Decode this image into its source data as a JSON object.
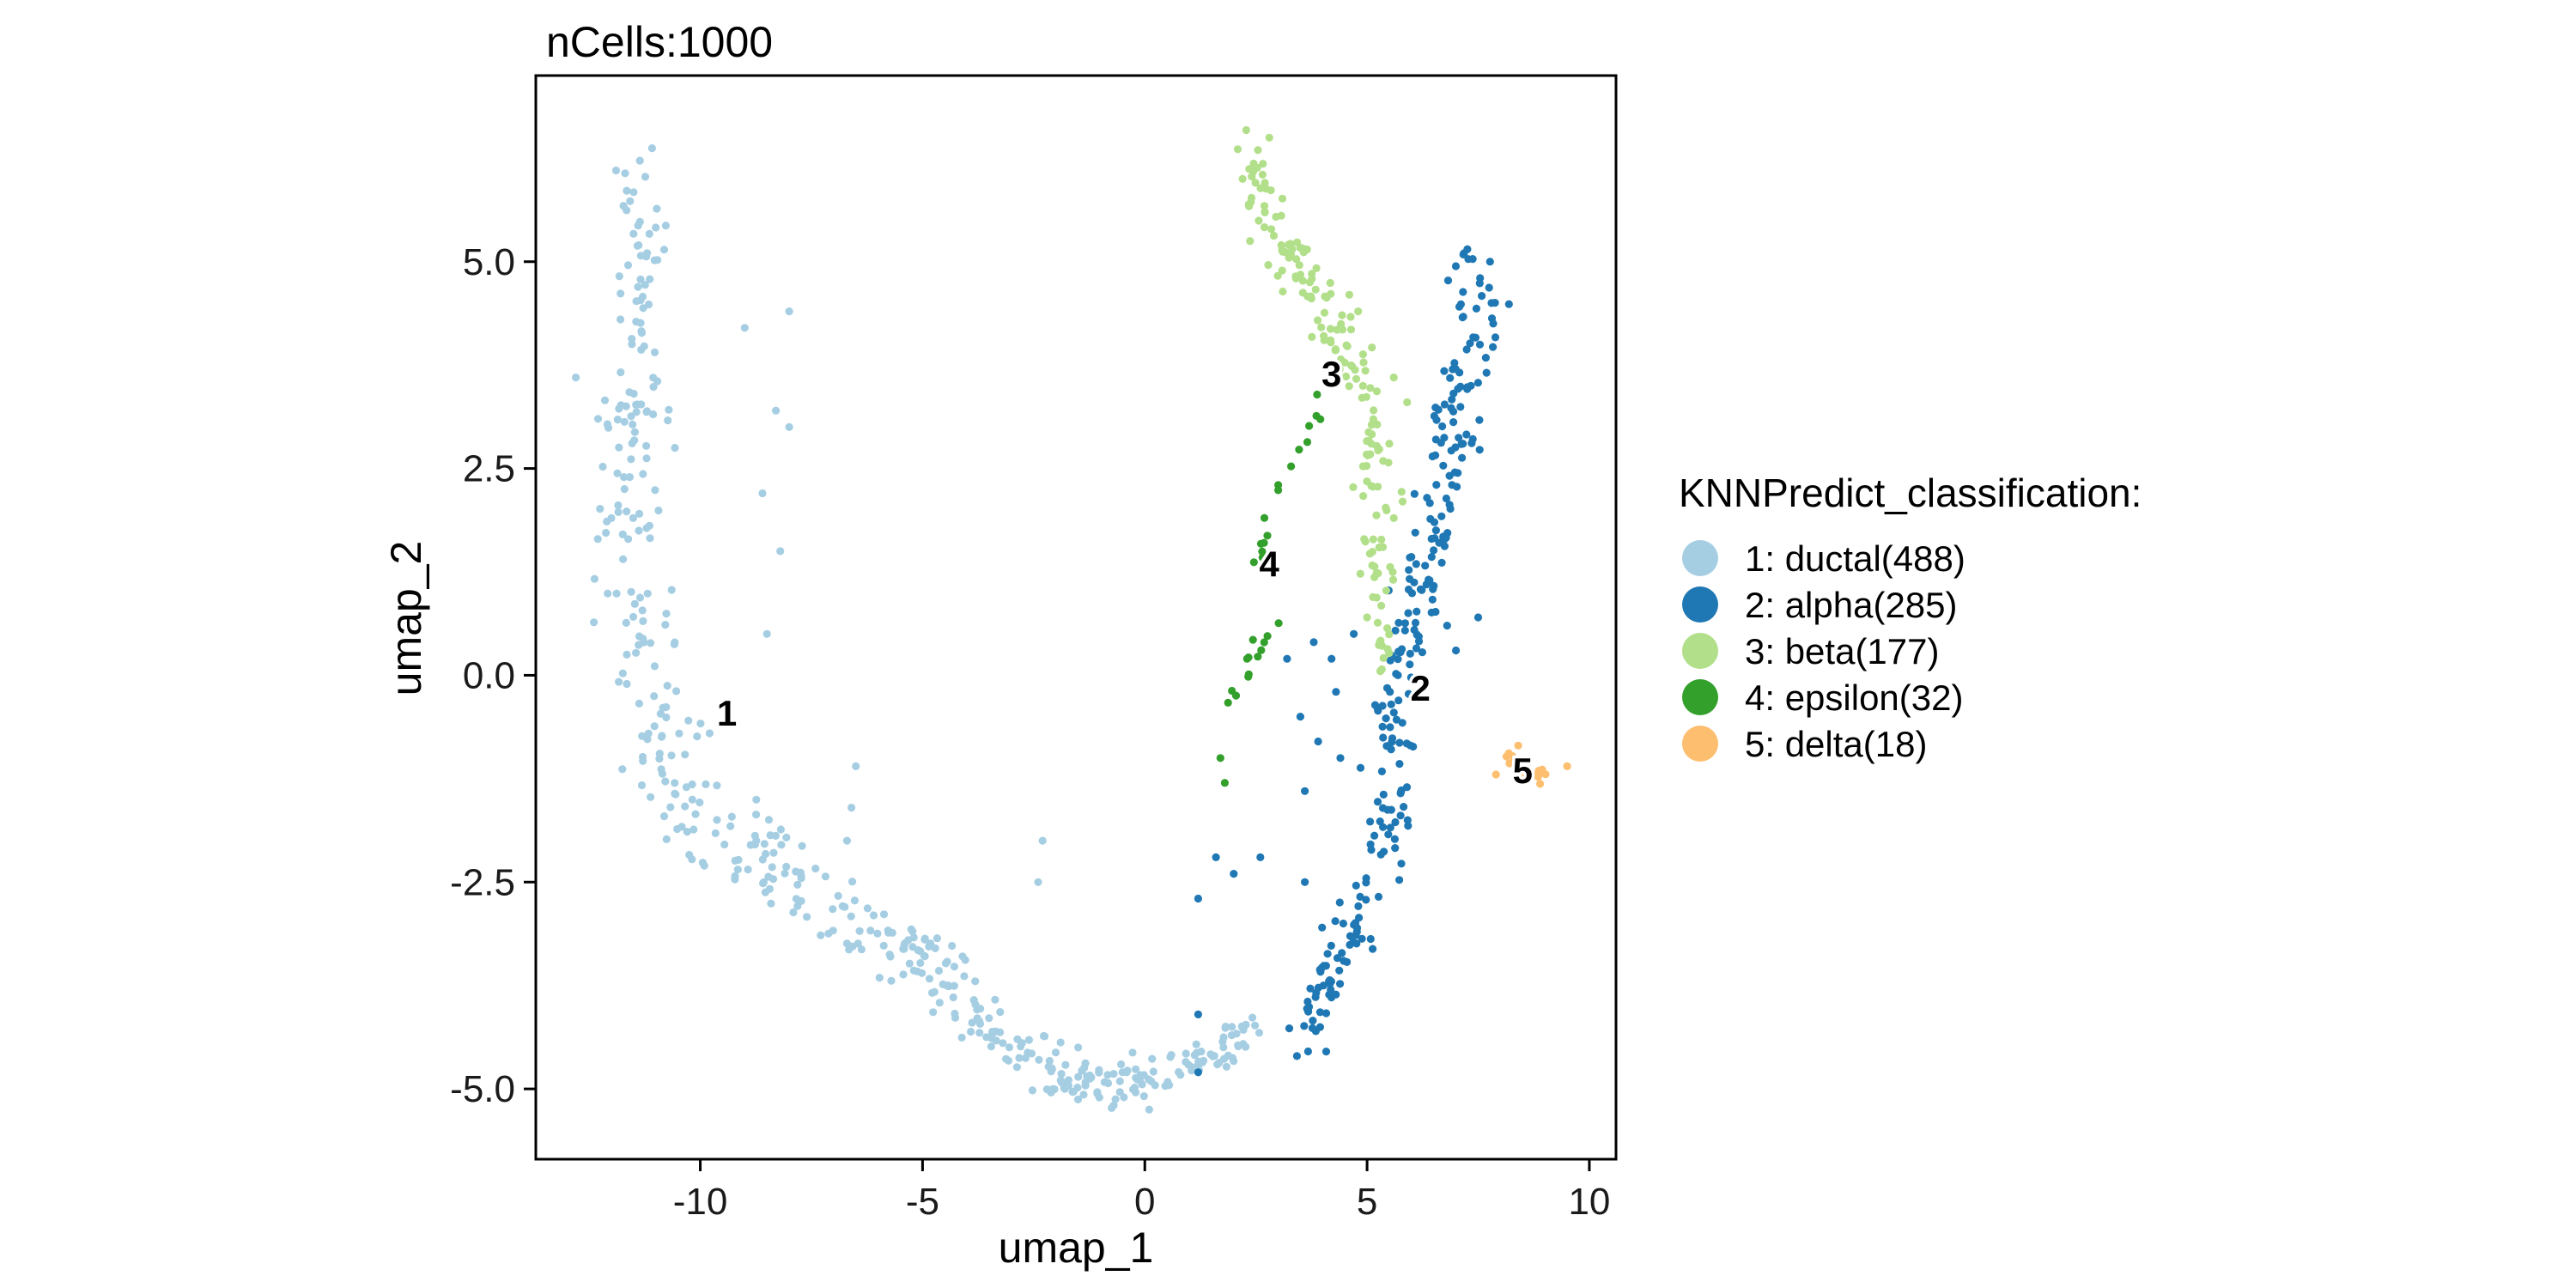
{
  "chart_data": {
    "type": "scatter",
    "title": "nCells:1000",
    "xlabel": "umap_1",
    "ylabel": "umap_2",
    "xlim": [
      -13.7,
      10.6
    ],
    "ylim": [
      -5.85,
      7.25
    ],
    "xticks": [
      -10,
      -5,
      0,
      5,
      10
    ],
    "xtick_labels": [
      "-10",
      "-5",
      "0",
      "5",
      "10"
    ],
    "yticks": [
      -5,
      -2.5,
      0,
      2.5,
      5
    ],
    "ytick_labels": [
      "-5.0",
      "-2.5",
      "0.0",
      "2.5",
      "5.0"
    ],
    "grid": false,
    "legend_position": "right",
    "legend_title": "KNNPredict_classification:",
    "series": [
      {
        "id": 1,
        "name": "1: ductal(488)",
        "count": 488,
        "color": "#a6cee3",
        "label": "1",
        "label_pos": [
          -9.4,
          -0.45
        ]
      },
      {
        "id": 2,
        "name": "2: alpha(285)",
        "count": 285,
        "color": "#1f78b4",
        "label": "2",
        "label_pos": [
          6.2,
          -0.15
        ]
      },
      {
        "id": 3,
        "name": "3: beta(177)",
        "count": 177,
        "color": "#b2df8a",
        "label": "3",
        "label_pos": [
          4.2,
          3.65
        ]
      },
      {
        "id": 4,
        "name": "4: epsilon(32)",
        "count": 32,
        "color": "#33a02c",
        "label": "4",
        "label_pos": [
          2.8,
          1.35
        ]
      },
      {
        "id": 5,
        "name": "5: delta(18)",
        "count": 18,
        "color": "#fdbf6f",
        "label": "5",
        "label_pos": [
          8.5,
          -1.15
        ]
      }
    ],
    "cluster_shapes": {
      "1": {
        "points": [
          [
            -11.3,
            5.9
          ],
          [
            -11.5,
            3.9
          ],
          [
            -11.6,
            1.5
          ],
          [
            -11.2,
            -0.6
          ],
          [
            -10.3,
            -1.7
          ],
          [
            -7.4,
            -2.6
          ],
          [
            -5.0,
            -3.4
          ],
          [
            -3.0,
            -4.5
          ],
          [
            -1.2,
            -5.0
          ],
          [
            0.6,
            -4.8
          ],
          [
            1.7,
            -4.6
          ],
          [
            2.5,
            -4.2
          ]
        ],
        "spread": [
          0.55,
          0.7,
          0.9,
          0.8,
          0.7,
          0.6,
          0.45,
          0.4,
          0.35,
          0.3,
          0.3,
          0.2
        ],
        "extra": [
          [
            -9.0,
            4.2
          ],
          [
            -8.0,
            4.4
          ],
          [
            -8.2,
            1.5
          ],
          [
            -8.5,
            0.5
          ],
          [
            -12.8,
            3.6
          ],
          [
            -8.3,
            3.2
          ],
          [
            -8.6,
            2.2
          ],
          [
            -8.0,
            3.0
          ],
          [
            -6.5,
            -1.1
          ],
          [
            -6.7,
            -2.0
          ],
          [
            -6.6,
            -1.6
          ],
          [
            -2.3,
            -2.0
          ],
          [
            -2.4,
            -2.5
          ],
          [
            -1.5,
            -4.5
          ],
          [
            0.1,
            -5.25
          ],
          [
            -0.7,
            -5.2
          ],
          [
            -1.8,
            -5.0
          ],
          [
            -12.3,
            3.1
          ],
          [
            -12.0,
            1.9
          ]
        ]
      },
      "2": {
        "points": [
          [
            7.2,
            5.0
          ],
          [
            7.6,
            4.3
          ],
          [
            7.2,
            3.6
          ],
          [
            7.0,
            2.8
          ],
          [
            6.6,
            2.0
          ],
          [
            6.3,
            1.2
          ],
          [
            6.0,
            0.4
          ],
          [
            5.6,
            -0.4
          ],
          [
            5.6,
            -1.3
          ],
          [
            5.3,
            -2.2
          ],
          [
            4.8,
            -3.0
          ],
          [
            4.0,
            -3.8
          ],
          [
            3.6,
            -4.4
          ]
        ],
        "spread": [
          0.5,
          0.6,
          0.55,
          0.6,
          0.55,
          0.55,
          0.5,
          0.5,
          0.5,
          0.5,
          0.5,
          0.45,
          0.35
        ],
        "extra": [
          [
            3.8,
            0.4
          ],
          [
            4.2,
            0.2
          ],
          [
            3.5,
            -0.5
          ],
          [
            4.3,
            -0.2
          ],
          [
            3.9,
            -0.8
          ],
          [
            3.2,
            0.2
          ],
          [
            1.6,
            -2.2
          ],
          [
            2.0,
            -2.4
          ],
          [
            2.6,
            -2.2
          ],
          [
            3.6,
            -2.5
          ],
          [
            1.2,
            -2.7
          ],
          [
            1.2,
            -4.1
          ],
          [
            1.2,
            -4.8
          ],
          [
            4.4,
            -1.0
          ],
          [
            3.6,
            -1.4
          ],
          [
            4.7,
            0.5
          ],
          [
            6.8,
            0.6
          ],
          [
            7.5,
            0.7
          ],
          [
            7.0,
            0.3
          ],
          [
            7.8,
            4.5
          ]
        ]
      },
      "3": {
        "points": [
          [
            2.3,
            6.3
          ],
          [
            2.5,
            5.7
          ],
          [
            3.0,
            5.2
          ],
          [
            3.7,
            4.8
          ],
          [
            4.2,
            4.2
          ],
          [
            4.8,
            3.7
          ],
          [
            5.1,
            3.0
          ],
          [
            5.2,
            2.3
          ],
          [
            5.2,
            1.6
          ],
          [
            5.3,
            0.9
          ],
          [
            5.3,
            0.2
          ]
        ],
        "spread": [
          0.35,
          0.45,
          0.45,
          0.4,
          0.4,
          0.4,
          0.4,
          0.4,
          0.35,
          0.35,
          0.3
        ],
        "extra": [
          [
            2.8,
            6.5
          ],
          [
            2.2,
            6.0
          ],
          [
            4.6,
            4.6
          ],
          [
            4.8,
            4.4
          ],
          [
            5.9,
            3.3
          ],
          [
            5.6,
            3.6
          ],
          [
            5.5,
            2.8
          ],
          [
            5.6,
            1.9
          ],
          [
            5.8,
            2.1
          ],
          [
            5.0,
            0.7
          ]
        ]
      },
      "4": {
        "points": [
          [
            4.0,
            3.5
          ],
          [
            3.7,
            2.9
          ],
          [
            3.4,
            2.6
          ],
          [
            2.9,
            2.1
          ],
          [
            2.5,
            1.6
          ],
          [
            2.7,
            0.8
          ],
          [
            2.8,
            0.4
          ],
          [
            2.0,
            -0.2
          ],
          [
            1.8,
            -0.4
          ]
        ],
        "spread": [
          0.15,
          0.15,
          0.15,
          0.2,
          0.2,
          0.2,
          0.2,
          0.2,
          0.2
        ],
        "extra": [
          [
            1.7,
            -1.0
          ],
          [
            1.8,
            -1.3
          ],
          [
            2.3,
            0.2
          ],
          [
            3.0,
            2.3
          ]
        ]
      },
      "5": {
        "points": [
          [
            8.2,
            -1.0
          ],
          [
            8.7,
            -1.2
          ],
          [
            9.3,
            -1.1
          ]
        ],
        "spread": [
          0.15,
          0.15,
          0.15
        ],
        "extra": [
          [
            8.4,
            -0.85
          ],
          [
            9.5,
            -1.1
          ],
          [
            7.9,
            -1.2
          ]
        ]
      }
    }
  }
}
